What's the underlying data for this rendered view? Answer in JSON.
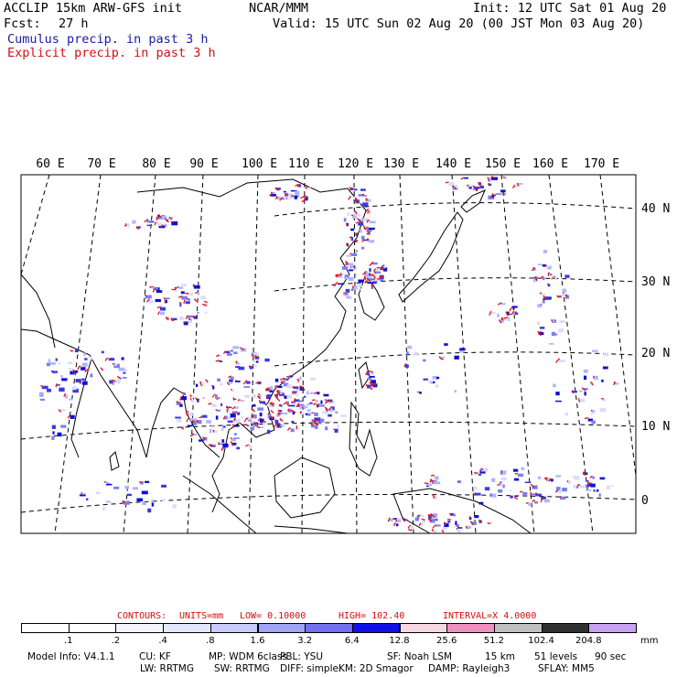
{
  "header": {
    "model_title": "ACCLIP 15km ARW-GFS init",
    "center": "NCAR/MMM",
    "init": "Init: 12 UTC Sat 01 Aug 20",
    "fcst_label": "Fcst:",
    "fcst_value": "27 h",
    "valid": "Valid: 15 UTC Sun 02 Aug 20 (00 JST Mon 03 Aug 20)",
    "cumulus_label": "Cumulus precip. in past 3 h",
    "explicit_label": "Explicit precip. in past 3 h"
  },
  "map": {
    "lon_labels": [
      "60 E",
      "70 E",
      "80 E",
      "90 E",
      "100 E",
      "110 E",
      "120 E",
      "130 E",
      "140 E",
      "150 E",
      "160 E",
      "170 E"
    ],
    "lat_labels": [
      "40 N",
      "30 N",
      "20 N",
      "10 N",
      "0"
    ],
    "colors": {
      "cumulus": "#1f1fd8",
      "explicit": "#e01818",
      "coast": "#000000",
      "grid": "#000000"
    }
  },
  "contours": {
    "contours_label": "CONTOURS:",
    "units": "UNITS=mm",
    "low": "LOW= 0.10000",
    "high": "HIGH= 102.40",
    "interval": "INTERVAL=X 4.0000"
  },
  "colorbar": {
    "levels": [
      ".1",
      ".2",
      ".4",
      ".8",
      "1.6",
      "3.2",
      "6.4",
      "12.8",
      "25.6",
      "51.2",
      "102.4",
      "204.8"
    ],
    "unit": "mm",
    "colors": [
      "#ffffff",
      "#ffffff",
      "#f4f4ff",
      "#e4e8ff",
      "#c8ccff",
      "#a0a4f8",
      "#7070f0",
      "#1010e8",
      "#f8d8e0",
      "#f090c0",
      "#c0c0c0",
      "#303030",
      "#c8a0f0"
    ]
  },
  "model_info": {
    "line1": [
      "Model Info: V4.1.1",
      "CU: KF",
      "MP: WDM 6class",
      "PBL: YSU",
      "SF: Noah LSM",
      "15 km",
      "51 levels",
      "90 sec"
    ],
    "line2": [
      "LW: RRTMG",
      "SW: RRTMG",
      "DIFF: simple",
      "KM: 2D Smagor",
      "DAMP: Rayleigh3",
      "SFLAY: MM5"
    ]
  }
}
